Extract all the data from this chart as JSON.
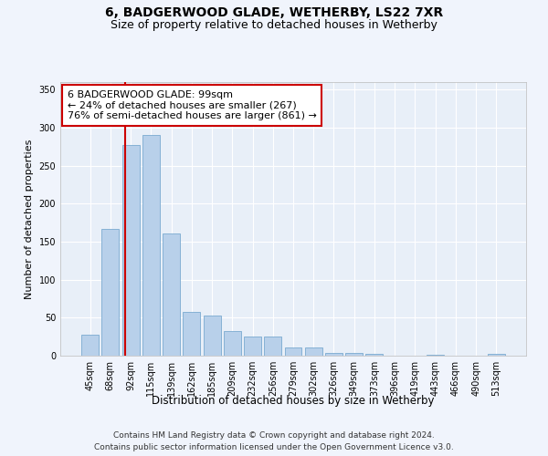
{
  "title": "6, BADGERWOOD GLADE, WETHERBY, LS22 7XR",
  "subtitle": "Size of property relative to detached houses in Wetherby",
  "xlabel": "Distribution of detached houses by size in Wetherby",
  "ylabel": "Number of detached properties",
  "categories": [
    "45sqm",
    "68sqm",
    "92sqm",
    "115sqm",
    "139sqm",
    "162sqm",
    "185sqm",
    "209sqm",
    "232sqm",
    "256sqm",
    "279sqm",
    "302sqm",
    "326sqm",
    "349sqm",
    "373sqm",
    "396sqm",
    "419sqm",
    "443sqm",
    "466sqm",
    "490sqm",
    "513sqm"
  ],
  "values": [
    28,
    167,
    277,
    290,
    161,
    58,
    53,
    32,
    25,
    25,
    11,
    11,
    4,
    4,
    2,
    0,
    0,
    1,
    0,
    0,
    2
  ],
  "bar_color": "#b8d0ea",
  "bar_edge_color": "#7aaad0",
  "background_color": "#e8eff8",
  "grid_color": "#ffffff",
  "vline_color": "#cc0000",
  "vline_index": 1.72,
  "annotation_text": "6 BADGERWOOD GLADE: 99sqm\n← 24% of detached houses are smaller (267)\n76% of semi-detached houses are larger (861) →",
  "annotation_box_facecolor": "#ffffff",
  "annotation_box_edgecolor": "#cc0000",
  "footer_line1": "Contains HM Land Registry data © Crown copyright and database right 2024.",
  "footer_line2": "Contains public sector information licensed under the Open Government Licence v3.0.",
  "ylim": [
    0,
    360
  ],
  "yticks": [
    0,
    50,
    100,
    150,
    200,
    250,
    300,
    350
  ],
  "title_fontsize": 10,
  "subtitle_fontsize": 9,
  "xlabel_fontsize": 8.5,
  "ylabel_fontsize": 8,
  "tick_fontsize": 7,
  "annotation_fontsize": 8,
  "footer_fontsize": 6.5,
  "fig_width": 6.0,
  "fig_height": 5.0,
  "dpi": 100
}
